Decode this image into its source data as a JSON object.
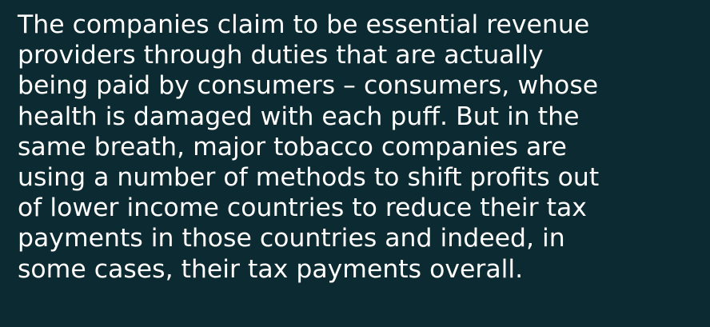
{
  "paragraph": {
    "lines": [
      "The companies claim to be essential revenue",
      "providers through duties that are actually",
      "being paid by consumers – consumers, whose",
      "health is damaged with each puff. But in the",
      "same breath, major tobacco companies are",
      "using a number of methods to shift profits out",
      "of lower income countries to reduce their tax",
      "payments in those countries and indeed, in",
      "some cases, their tax payments overall."
    ]
  }
}
